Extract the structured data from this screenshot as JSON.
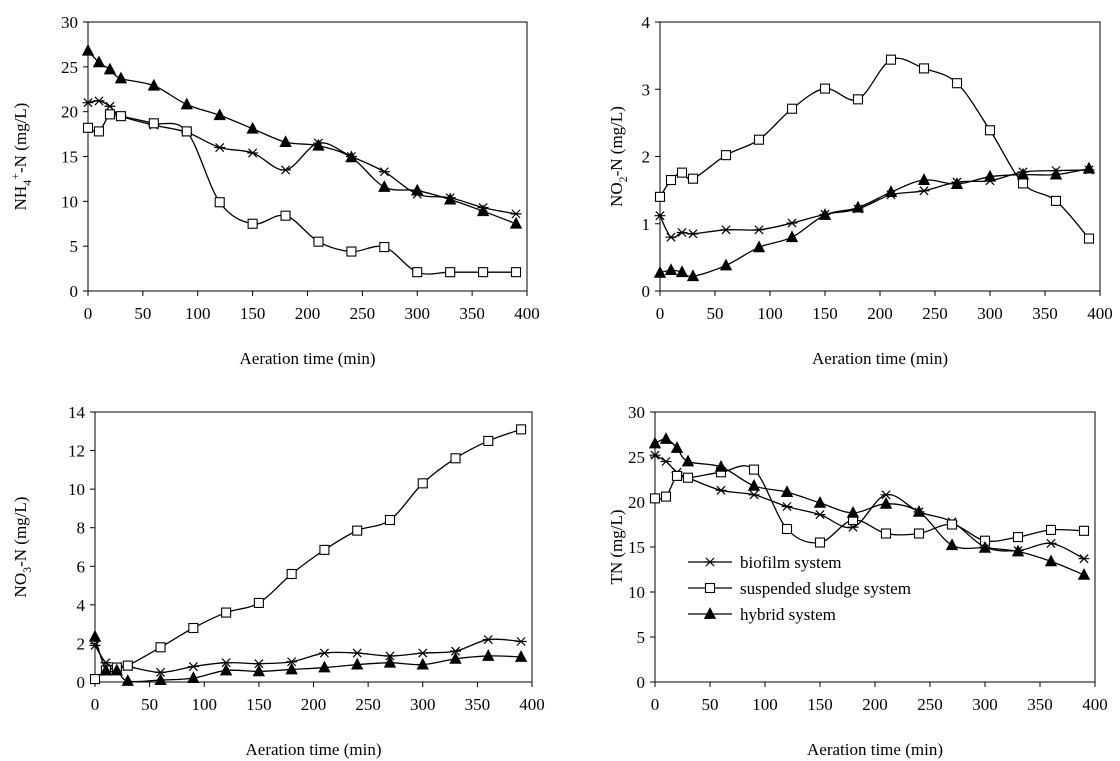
{
  "chart_data": [
    {
      "type": "line",
      "id": "nh4",
      "ylabel_parts": [
        "NH",
        "4",
        "+",
        "-N (mg/L)"
      ],
      "xlabel": "Aeration time (min)",
      "xlim": [
        0,
        400
      ],
      "ylim": [
        0,
        30
      ],
      "xticks": [
        0,
        50,
        100,
        150,
        200,
        250,
        300,
        350,
        400
      ],
      "yticks": [
        0,
        5,
        10,
        15,
        20,
        25,
        30
      ],
      "grid": false,
      "series": [
        {
          "marker": "star",
          "x": [
            0,
            10,
            20,
            30,
            60,
            90,
            120,
            150,
            180,
            210,
            240,
            270,
            300,
            330,
            360,
            390
          ],
          "y": [
            21.0,
            21.2,
            20.6,
            19.5,
            18.5,
            17.7,
            16.0,
            15.4,
            13.5,
            16.5,
            15.0,
            13.3,
            10.8,
            10.4,
            9.3,
            8.6
          ]
        },
        {
          "marker": "square",
          "x": [
            0,
            10,
            20,
            30,
            60,
            90,
            120,
            150,
            180,
            210,
            240,
            270,
            300,
            330,
            360,
            390
          ],
          "y": [
            18.2,
            17.8,
            19.7,
            19.5,
            18.7,
            17.8,
            9.9,
            7.5,
            8.4,
            5.5,
            4.4,
            4.9,
            2.1,
            2.1,
            2.1,
            2.1
          ]
        },
        {
          "marker": "triangle",
          "x": [
            0,
            10,
            20,
            30,
            60,
            90,
            120,
            150,
            180,
            210,
            240,
            270,
            300,
            330,
            360,
            390
          ],
          "y": [
            26.8,
            25.5,
            24.7,
            23.7,
            22.9,
            20.8,
            19.6,
            18.1,
            16.6,
            16.2,
            14.9,
            11.6,
            11.2,
            10.2,
            8.9,
            7.5
          ]
        }
      ]
    },
    {
      "type": "line",
      "id": "no2",
      "ylabel_parts": [
        "NO",
        "2",
        "",
        "-N (mg/L)"
      ],
      "xlabel": "Aeration time (min)",
      "xlim": [
        0,
        400
      ],
      "ylim": [
        0,
        4
      ],
      "xticks": [
        0,
        50,
        100,
        150,
        200,
        250,
        300,
        350,
        400
      ],
      "yticks": [
        0,
        1,
        2,
        3,
        4
      ],
      "grid": false,
      "series": [
        {
          "marker": "star",
          "x": [
            0,
            10,
            20,
            30,
            60,
            90,
            120,
            150,
            180,
            210,
            240,
            270,
            300,
            330,
            360,
            390
          ],
          "y": [
            1.12,
            0.8,
            0.87,
            0.85,
            0.91,
            0.91,
            1.01,
            1.14,
            1.22,
            1.43,
            1.49,
            1.62,
            1.64,
            1.77,
            1.79,
            1.8
          ]
        },
        {
          "marker": "square",
          "x": [
            0,
            10,
            20,
            30,
            60,
            90,
            120,
            150,
            180,
            210,
            240,
            270,
            300,
            330,
            360,
            390
          ],
          "y": [
            1.4,
            1.65,
            1.76,
            1.67,
            2.02,
            2.25,
            2.71,
            3.01,
            2.85,
            3.44,
            3.31,
            3.09,
            2.39,
            1.6,
            1.34,
            0.78
          ]
        },
        {
          "marker": "triangle",
          "x": [
            0,
            10,
            20,
            30,
            60,
            90,
            120,
            150,
            180,
            210,
            240,
            270,
            300,
            330,
            360,
            390
          ],
          "y": [
            0.27,
            0.31,
            0.28,
            0.22,
            0.38,
            0.65,
            0.8,
            1.13,
            1.24,
            1.47,
            1.65,
            1.59,
            1.7,
            1.73,
            1.73,
            1.82
          ]
        }
      ]
    },
    {
      "type": "line",
      "id": "no3",
      "ylabel_parts": [
        "NO",
        "3",
        "",
        "-N (mg/L)"
      ],
      "xlabel": "Aeration time (min)",
      "xlim": [
        0,
        400
      ],
      "ylim": [
        0,
        14
      ],
      "xticks": [
        0,
        50,
        100,
        150,
        200,
        250,
        300,
        350,
        400
      ],
      "yticks": [
        0,
        2,
        4,
        6,
        8,
        10,
        12,
        14
      ],
      "grid": false,
      "series": [
        {
          "marker": "star",
          "x": [
            0,
            10,
            20,
            30,
            60,
            90,
            120,
            150,
            180,
            210,
            240,
            270,
            300,
            330,
            360,
            390
          ],
          "y": [
            1.9,
            1.0,
            0.8,
            0.8,
            0.5,
            0.8,
            1.0,
            0.95,
            1.05,
            1.5,
            1.5,
            1.35,
            1.5,
            1.6,
            2.2,
            2.1
          ]
        },
        {
          "marker": "square",
          "x": [
            0,
            10,
            20,
            30,
            60,
            90,
            120,
            150,
            180,
            210,
            240,
            270,
            300,
            330,
            360,
            390
          ],
          "y": [
            0.15,
            0.6,
            0.75,
            0.85,
            1.8,
            2.8,
            3.6,
            4.1,
            5.6,
            6.85,
            7.85,
            8.4,
            10.3,
            11.6,
            12.5,
            13.1
          ]
        },
        {
          "marker": "triangle",
          "x": [
            0,
            10,
            20,
            30,
            60,
            90,
            120,
            150,
            180,
            210,
            240,
            270,
            300,
            330,
            360,
            390
          ],
          "y": [
            2.35,
            0.6,
            0.6,
            0.05,
            0.1,
            0.2,
            0.6,
            0.55,
            0.65,
            0.75,
            0.9,
            1.0,
            0.9,
            1.2,
            1.35,
            1.3
          ]
        }
      ]
    },
    {
      "type": "line",
      "id": "tn",
      "ylabel_parts": [
        "TN (mg/L)",
        "",
        "",
        ""
      ],
      "xlabel": "Aeration time (min)",
      "xlim": [
        0,
        400
      ],
      "ylim": [
        0,
        30
      ],
      "xticks": [
        0,
        50,
        100,
        150,
        200,
        250,
        300,
        350,
        400
      ],
      "yticks": [
        0,
        5,
        10,
        15,
        20,
        25,
        30
      ],
      "grid": false,
      "legend": "center-left",
      "series": [
        {
          "name": "biofilm system",
          "marker": "star",
          "x": [
            0,
            10,
            20,
            30,
            60,
            90,
            120,
            150,
            180,
            210,
            240,
            270,
            300,
            330,
            360,
            390
          ],
          "y": [
            25.2,
            24.5,
            23.3,
            22.7,
            21.3,
            20.8,
            19.5,
            18.6,
            17.2,
            20.8,
            18.9,
            17.8,
            15.0,
            14.6,
            15.4,
            13.7
          ]
        },
        {
          "name": "suspended sludge system",
          "marker": "square",
          "x": [
            0,
            10,
            20,
            30,
            60,
            90,
            120,
            150,
            180,
            210,
            240,
            270,
            300,
            330,
            360,
            390
          ],
          "y": [
            20.4,
            20.6,
            22.9,
            22.7,
            23.3,
            23.6,
            17.0,
            15.5,
            18.0,
            16.5,
            16.5,
            17.5,
            15.7,
            16.1,
            16.9,
            16.8
          ]
        },
        {
          "name": "hybrid system",
          "marker": "triangle",
          "x": [
            0,
            10,
            20,
            30,
            60,
            90,
            120,
            150,
            180,
            210,
            240,
            270,
            300,
            330,
            360,
            390
          ],
          "y": [
            26.5,
            27.0,
            26.0,
            24.5,
            23.9,
            21.8,
            21.1,
            19.9,
            18.8,
            19.8,
            18.9,
            15.2,
            14.9,
            14.5,
            13.4,
            11.9
          ]
        }
      ]
    }
  ]
}
